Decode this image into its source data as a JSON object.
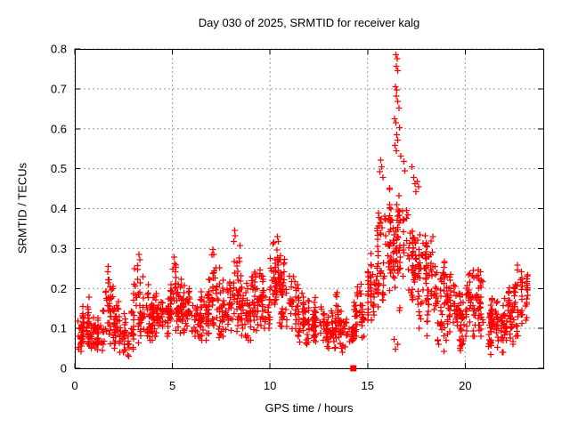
{
  "chart_data": {
    "type": "scatter",
    "title": "Day 030 of 2025, SRMTID for receiver kalg",
    "xlabel": "GPS time / hours",
    "ylabel": "SRMTID / TECUs",
    "xlim": [
      0,
      24
    ],
    "ylim": [
      0,
      0.8
    ],
    "xticks": [
      0,
      5,
      10,
      15,
      20
    ],
    "xtick_labels": [
      "0",
      "5",
      "10",
      "15",
      "20"
    ],
    "yticks": [
      0,
      0.1,
      0.2,
      0.3,
      0.4,
      0.5,
      0.6,
      0.7,
      0.8
    ],
    "ytick_labels": [
      "0",
      "0.1",
      "0.2",
      "0.3",
      "0.4",
      "0.5",
      "0.6",
      "0.7",
      "0.8"
    ],
    "grid": true,
    "grid_color": "#9a9a9a",
    "axis_color": "#000000",
    "marker_color": "#ff0000",
    "series": [
      {
        "name": "srmtid-points",
        "marker": "plus",
        "bins": [
          [
            0.0,
            0.5,
            0.03,
            0.17,
            40
          ],
          [
            0.5,
            1.0,
            0.05,
            0.19,
            42
          ],
          [
            1.0,
            1.5,
            0.04,
            0.16,
            38
          ],
          [
            1.5,
            2.0,
            0.06,
            0.26,
            40
          ],
          [
            2.0,
            2.5,
            0.04,
            0.18,
            40
          ],
          [
            2.5,
            3.0,
            0.03,
            0.16,
            36
          ],
          [
            3.0,
            3.5,
            0.06,
            0.29,
            42
          ],
          [
            3.5,
            4.0,
            0.07,
            0.24,
            40
          ],
          [
            4.0,
            4.5,
            0.08,
            0.21,
            40
          ],
          [
            4.5,
            5.0,
            0.08,
            0.23,
            40
          ],
          [
            5.0,
            5.5,
            0.08,
            0.28,
            42
          ],
          [
            5.5,
            6.0,
            0.09,
            0.22,
            40
          ],
          [
            6.0,
            6.5,
            0.08,
            0.22,
            40
          ],
          [
            6.5,
            7.0,
            0.07,
            0.26,
            40
          ],
          [
            7.0,
            7.5,
            0.06,
            0.3,
            42
          ],
          [
            7.5,
            8.0,
            0.07,
            0.25,
            40
          ],
          [
            8.0,
            8.5,
            0.08,
            0.35,
            44
          ],
          [
            8.5,
            9.0,
            0.07,
            0.25,
            40
          ],
          [
            9.0,
            9.5,
            0.09,
            0.28,
            40
          ],
          [
            9.5,
            10.0,
            0.1,
            0.26,
            40
          ],
          [
            10.0,
            10.5,
            0.12,
            0.33,
            44
          ],
          [
            10.5,
            11.0,
            0.1,
            0.31,
            44
          ],
          [
            11.0,
            11.5,
            0.08,
            0.26,
            40
          ],
          [
            11.5,
            12.0,
            0.06,
            0.21,
            40
          ],
          [
            12.0,
            12.5,
            0.05,
            0.2,
            40
          ],
          [
            12.5,
            13.0,
            0.05,
            0.18,
            40
          ],
          [
            13.0,
            13.5,
            0.05,
            0.2,
            38
          ],
          [
            13.5,
            14.0,
            0.04,
            0.16,
            34
          ],
          [
            14.0,
            14.3,
            0.05,
            0.14,
            18
          ],
          [
            14.3,
            15.0,
            0.07,
            0.25,
            44
          ],
          [
            15.0,
            15.5,
            0.12,
            0.35,
            44
          ],
          [
            15.5,
            16.0,
            0.14,
            0.45,
            46
          ],
          [
            16.0,
            16.5,
            0.15,
            0.48,
            48
          ],
          [
            16.5,
            17.0,
            0.14,
            0.45,
            46
          ],
          [
            17.0,
            17.5,
            0.12,
            0.42,
            44
          ],
          [
            17.5,
            18.0,
            0.1,
            0.4,
            44
          ],
          [
            18.0,
            18.5,
            0.08,
            0.35,
            42
          ],
          [
            18.5,
            19.0,
            0.06,
            0.3,
            40
          ],
          [
            19.0,
            19.5,
            0.07,
            0.3,
            40
          ],
          [
            19.5,
            20.0,
            0.04,
            0.22,
            40
          ],
          [
            20.0,
            20.5,
            0.08,
            0.27,
            40
          ],
          [
            20.5,
            21.0,
            0.08,
            0.3,
            40
          ],
          [
            21.0,
            21.5,
            0.05,
            0.2,
            40
          ],
          [
            21.5,
            22.0,
            0.04,
            0.21,
            40
          ],
          [
            22.0,
            22.5,
            0.06,
            0.22,
            40
          ],
          [
            22.5,
            23.0,
            0.08,
            0.28,
            40
          ],
          [
            23.0,
            23.2,
            0.12,
            0.26,
            16
          ]
        ],
        "extra_points": [
          [
            16.45,
            0.785
          ],
          [
            16.52,
            0.775
          ],
          [
            16.48,
            0.757
          ],
          [
            16.55,
            0.745
          ],
          [
            16.42,
            0.705
          ],
          [
            16.5,
            0.698
          ],
          [
            16.47,
            0.682
          ],
          [
            16.53,
            0.668
          ],
          [
            16.6,
            0.652
          ],
          [
            16.38,
            0.625
          ],
          [
            16.45,
            0.615
          ],
          [
            16.62,
            0.603
          ],
          [
            16.5,
            0.585
          ],
          [
            16.55,
            0.572
          ],
          [
            16.4,
            0.558
          ],
          [
            16.48,
            0.545
          ],
          [
            16.7,
            0.532
          ],
          [
            16.85,
            0.518
          ],
          [
            15.68,
            0.522
          ],
          [
            15.72,
            0.505
          ],
          [
            15.62,
            0.492
          ],
          [
            15.78,
            0.478
          ],
          [
            16.9,
            0.495
          ],
          [
            17.28,
            0.505
          ],
          [
            17.35,
            0.478
          ],
          [
            17.42,
            0.462
          ],
          [
            17.55,
            0.468
          ],
          [
            17.62,
            0.455
          ],
          [
            17.48,
            0.442
          ],
          [
            16.35,
            0.072
          ],
          [
            16.42,
            0.048
          ],
          [
            16.55,
            0.06
          ],
          [
            18.92,
            0.042
          ],
          [
            19.75,
            0.045
          ],
          [
            21.3,
            0.035
          ],
          [
            8.18,
            0.345
          ],
          [
            8.22,
            0.332
          ],
          [
            8.15,
            0.318
          ],
          [
            10.38,
            0.33
          ],
          [
            10.42,
            0.318
          ],
          [
            1.7,
            0.255
          ],
          [
            1.68,
            0.242
          ],
          [
            3.28,
            0.285
          ],
          [
            3.32,
            0.272
          ],
          [
            5.08,
            0.278
          ],
          [
            5.12,
            0.262
          ],
          [
            7.08,
            0.298
          ],
          [
            7.12,
            0.285
          ]
        ]
      },
      {
        "name": "flag-marker",
        "marker": "filled-square",
        "points": [
          [
            14.27,
            0.0
          ]
        ]
      }
    ]
  }
}
